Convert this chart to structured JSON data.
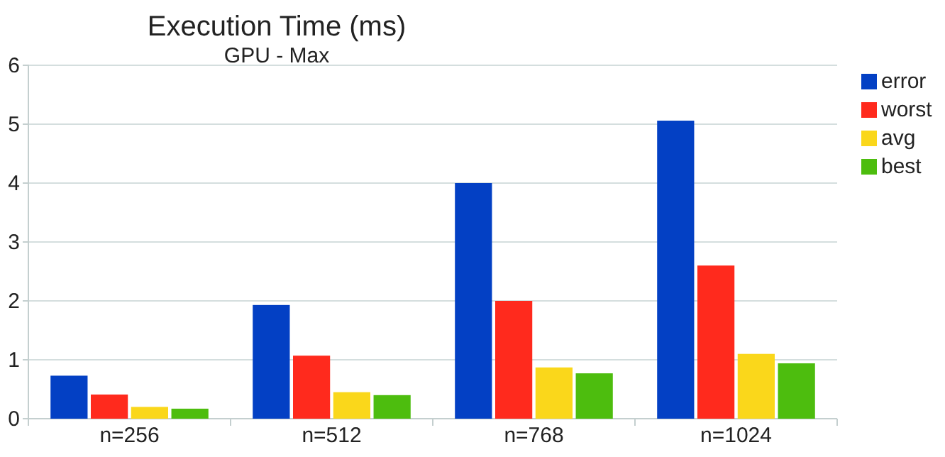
{
  "chart_data": {
    "type": "bar",
    "title": "Execution Time (ms)",
    "subtitle": "GPU - Max",
    "categories": [
      "n=256",
      "n=512",
      "n=768",
      "n=1024"
    ],
    "series": [
      {
        "name": "error",
        "color": "#0340c4",
        "values": [
          0.73,
          1.93,
          4.0,
          5.06
        ]
      },
      {
        "name": "worst",
        "color": "#ff2a1d",
        "values": [
          0.41,
          1.07,
          2.0,
          2.6
        ]
      },
      {
        "name": "avg",
        "color": "#fad71b",
        "values": [
          0.2,
          0.45,
          0.87,
          1.1
        ]
      },
      {
        "name": "best",
        "color": "#4dbd0e",
        "values": [
          0.17,
          0.4,
          0.77,
          0.94
        ]
      }
    ],
    "ylim": [
      0,
      6
    ],
    "yticks": [
      0,
      1,
      2,
      3,
      4,
      5,
      6
    ],
    "grid": "y",
    "legend": "right"
  }
}
